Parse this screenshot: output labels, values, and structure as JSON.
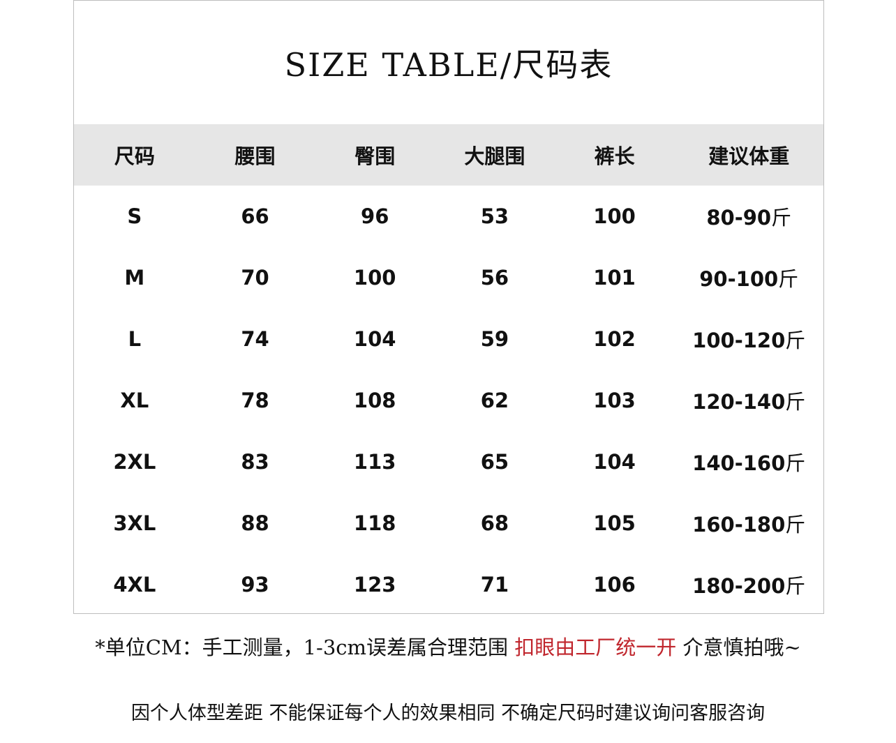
{
  "colors": {
    "header_bg": "#e6e6e6",
    "highlight": "#c0262d",
    "text": "#111111"
  },
  "title": "SIZE TABLE/尺码表",
  "table": {
    "headers": [
      "尺码",
      "腰围",
      "臀围",
      "大腿围",
      "裤长",
      "建议体重"
    ],
    "weight_unit": "斤",
    "rows": [
      [
        "S",
        "66",
        "96",
        "53",
        "100",
        "80-90"
      ],
      [
        "M",
        "70",
        "100",
        "56",
        "101",
        "90-100"
      ],
      [
        "L",
        "74",
        "104",
        "59",
        "102",
        "100-120"
      ],
      [
        "XL",
        "78",
        "108",
        "62",
        "103",
        "120-140"
      ],
      [
        "2XL",
        "83",
        "113",
        "65",
        "104",
        "140-160"
      ],
      [
        "3XL",
        "88",
        "118",
        "68",
        "105",
        "160-180"
      ],
      [
        "4XL",
        "93",
        "123",
        "71",
        "106",
        "180-200"
      ]
    ]
  },
  "notes": {
    "line1_part1": "*单位CM：手工测量，1-3cm误差属合理范围 ",
    "line1_highlight": "扣眼由工厂统一开",
    "line1_part2": " 介意慎拍哦~",
    "line2": "因个人体型差距 不能保证每个人的效果相同 不确定尺码时建议询问客服咨询"
  }
}
